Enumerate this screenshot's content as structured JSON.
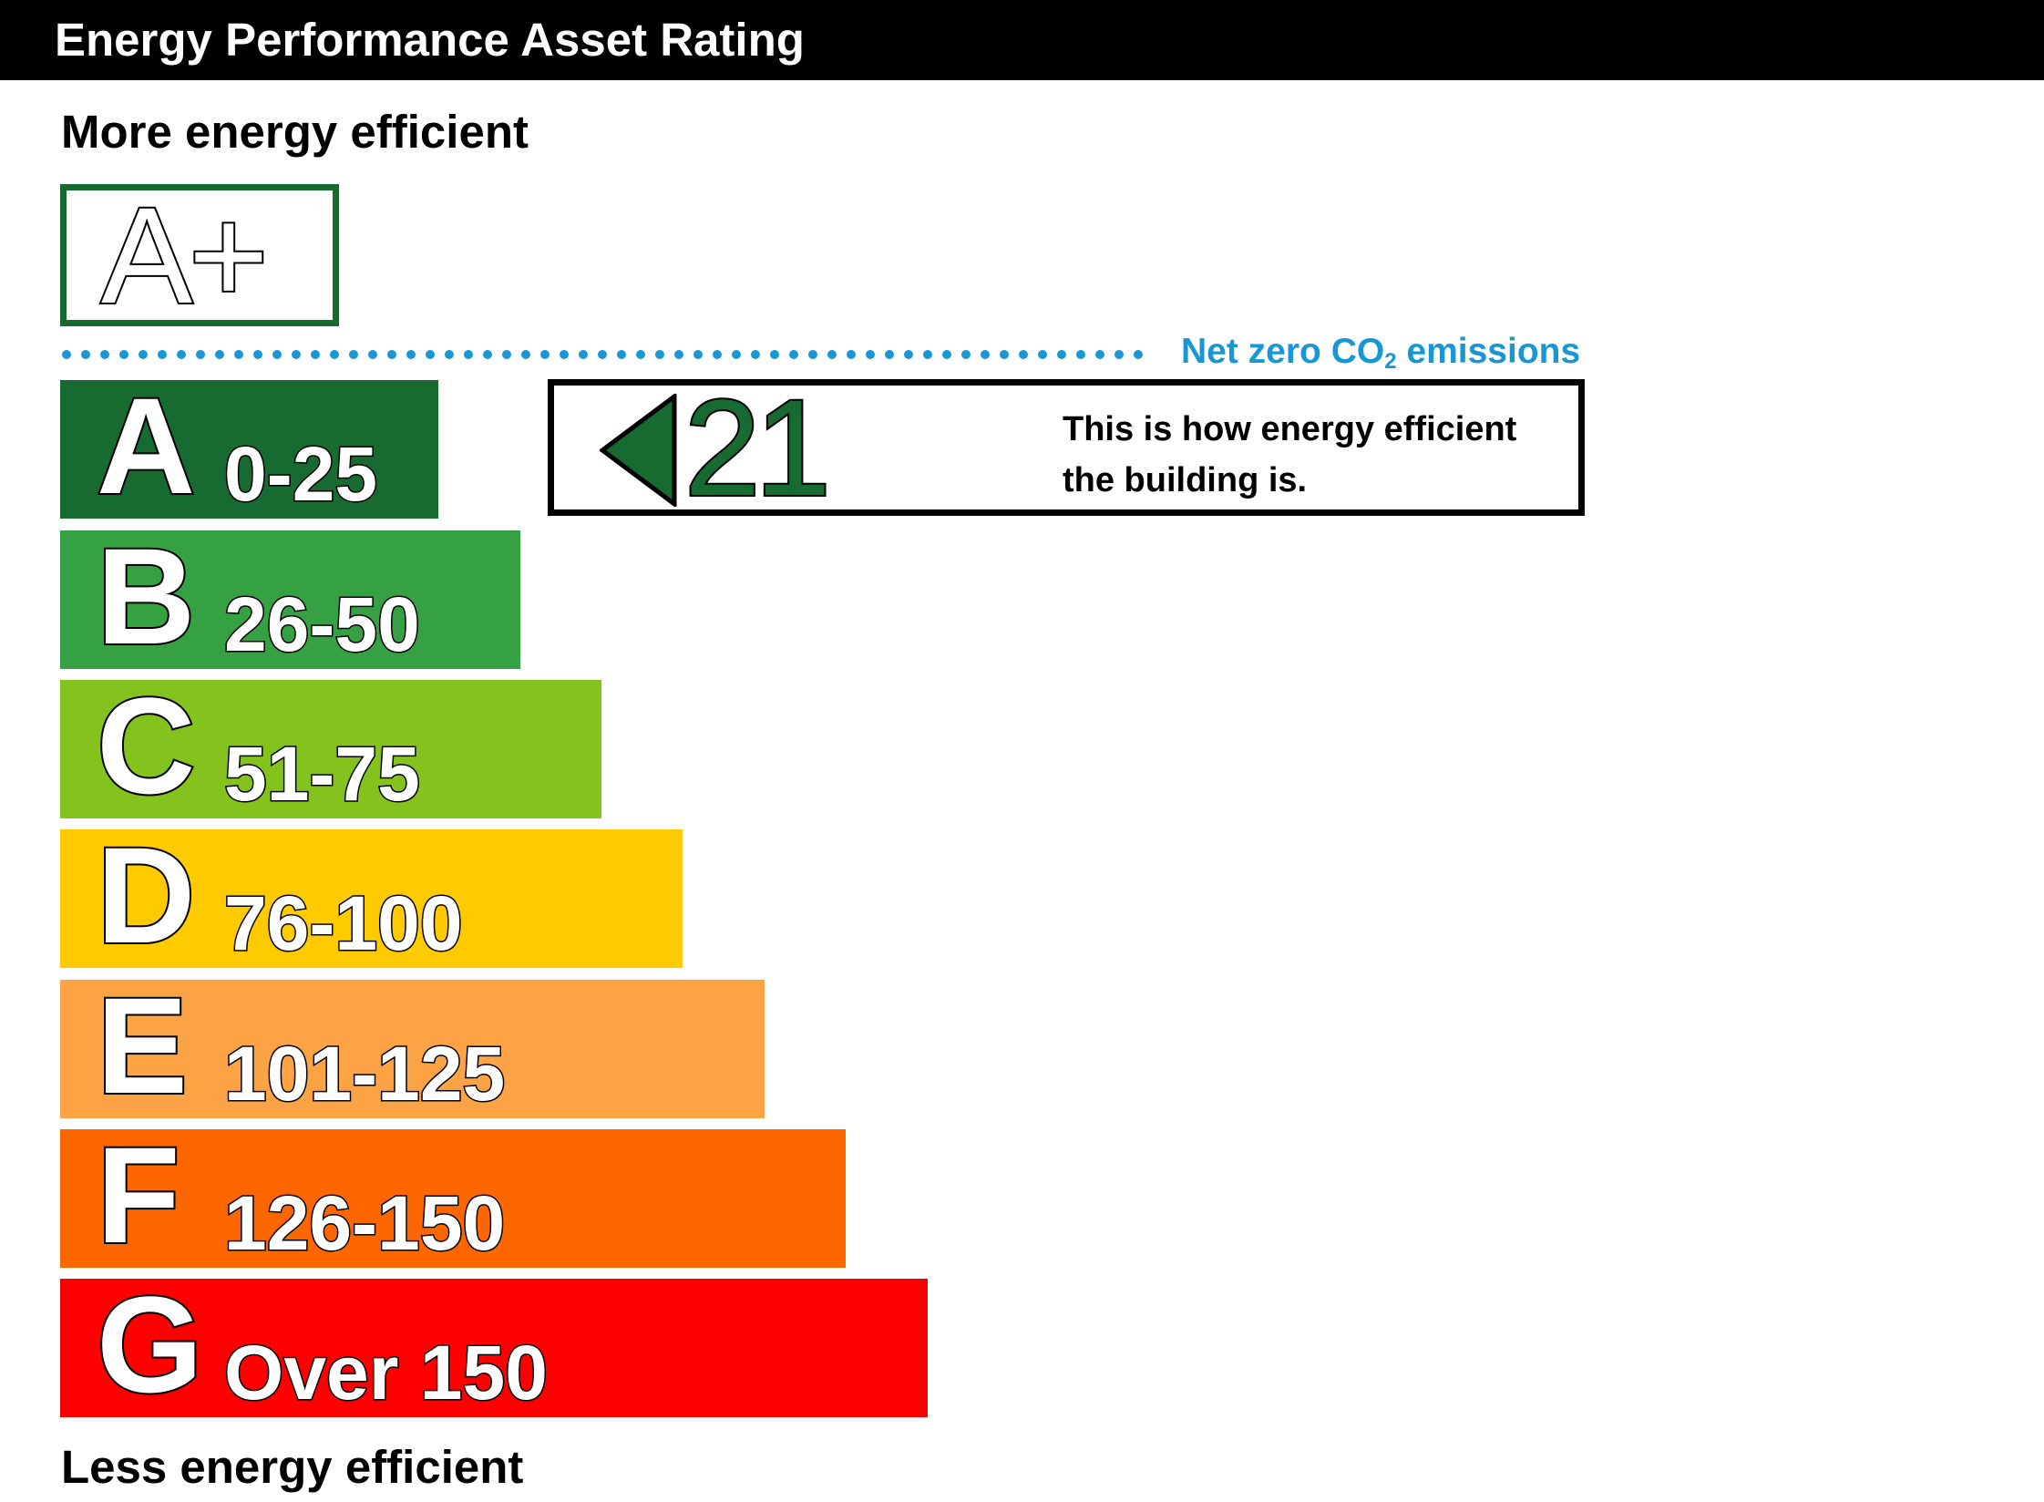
{
  "header": {
    "title": "Energy Performance Asset Rating"
  },
  "labels": {
    "top": "More energy efficient",
    "bottom": "Less energy efficient"
  },
  "aplus": {
    "label": "A+"
  },
  "net_zero": {
    "label": "Net zero CO",
    "subscript": "2",
    "suffix": " emissions",
    "color": "#1997d5"
  },
  "bands": [
    {
      "letter": "A",
      "range": "0-25",
      "color": "#176b30"
    },
    {
      "letter": "B",
      "range": "26-50",
      "color": "#36a143"
    },
    {
      "letter": "C",
      "range": "51-75",
      "color": "#84c21e"
    },
    {
      "letter": "D",
      "range": "76-100",
      "color": "#ffcb00"
    },
    {
      "letter": "E",
      "range": "101-125",
      "color": "#fca346"
    },
    {
      "letter": "F",
      "range": "126-150",
      "color": "#fe6600"
    },
    {
      "letter": "G",
      "range": "Over 150",
      "color": "#fe0000"
    }
  ],
  "current_rating": {
    "value": "21",
    "band": "A",
    "color": "#176b30",
    "description": "This is how energy efficient the building is."
  }
}
